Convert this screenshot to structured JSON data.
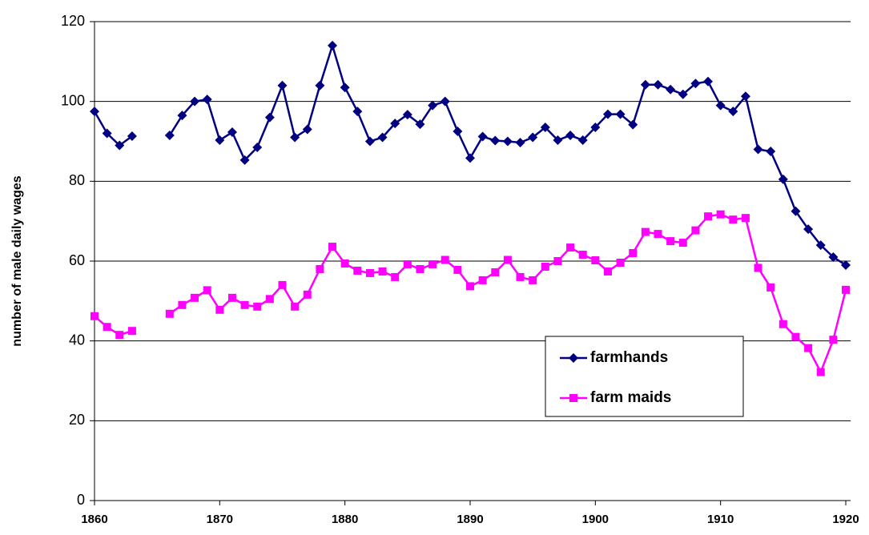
{
  "chart_data": {
    "type": "line",
    "y_label": "number of male daily wages",
    "x": [
      1860,
      1861,
      1862,
      1863,
      1864,
      1865,
      1866,
      1867,
      1868,
      1869,
      1870,
      1871,
      1872,
      1873,
      1874,
      1875,
      1876,
      1877,
      1878,
      1879,
      1880,
      1881,
      1882,
      1883,
      1884,
      1885,
      1886,
      1887,
      1888,
      1889,
      1890,
      1891,
      1892,
      1893,
      1894,
      1895,
      1896,
      1897,
      1898,
      1899,
      1900,
      1901,
      1902,
      1903,
      1904,
      1905,
      1906,
      1907,
      1908,
      1909,
      1910,
      1911,
      1912,
      1913,
      1914,
      1915,
      1916,
      1917,
      1918,
      1919,
      1920
    ],
    "series": [
      {
        "name": "farmhands",
        "color": "#000080",
        "marker": "diamond",
        "values": [
          97.5,
          92,
          89,
          91.3,
          null,
          null,
          91.5,
          96.5,
          100,
          100.5,
          90.3,
          92.3,
          85.3,
          88.5,
          96,
          104,
          91,
          93,
          104,
          114,
          103.5,
          97.5,
          90,
          91,
          94.5,
          96.7,
          94.3,
          99,
          100,
          92.5,
          85.8,
          91.2,
          90.2,
          90,
          89.7,
          91,
          93.5,
          90.3,
          91.5,
          90.3,
          93.5,
          96.8,
          96.8,
          94.2,
          104.2,
          104.2,
          103,
          101.8,
          104.5,
          105,
          99,
          97.5,
          101.3,
          88,
          87.5,
          80.5,
          72.5,
          68,
          64,
          61,
          59
        ]
      },
      {
        "name": "farm maids",
        "color": "#ff00ff",
        "marker": "square",
        "values": [
          46.2,
          43.5,
          41.5,
          42.5,
          null,
          null,
          46.8,
          49,
          50.8,
          52.7,
          47.8,
          50.8,
          49,
          48.6,
          50.5,
          54,
          48.6,
          51.6,
          58,
          63.6,
          59.4,
          57.6,
          57,
          57.4,
          56,
          59.2,
          58,
          59.2,
          60.3,
          57.8,
          53.7,
          55.2,
          57.2,
          60.3,
          56,
          55.2,
          58.6,
          60,
          63.4,
          61.6,
          60.2,
          57.4,
          59.6,
          62,
          67.3,
          66.8,
          65,
          64.6,
          67.7,
          71.2,
          71.7,
          70.4,
          70.8,
          58.3,
          53.4,
          44.2,
          41,
          38.2,
          32.2,
          40.3,
          52.8
        ]
      }
    ],
    "xlim": [
      1860,
      1920
    ],
    "xticks": [
      1860,
      1870,
      1880,
      1890,
      1900,
      1910,
      1920
    ],
    "ylim": [
      0,
      120
    ],
    "yticks": [
      0,
      20,
      40,
      60,
      80,
      100,
      120
    ],
    "grid": true,
    "legend": "lower right"
  }
}
